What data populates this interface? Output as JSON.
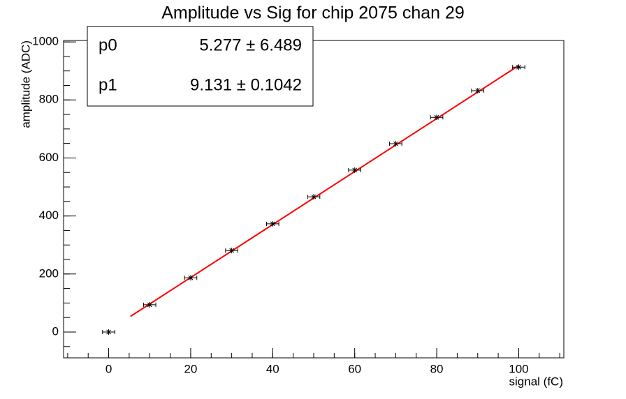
{
  "chart_data": {
    "type": "scatter",
    "title": "Amplitude vs Sig for chip 2075 chan 29",
    "x_label": "signal (fC)",
    "y_label": "amplitude (ADC)",
    "xlim": [
      -11,
      111
    ],
    "ylim": [
      -89,
      1005
    ],
    "xticks": [
      0,
      20,
      40,
      60,
      80,
      100
    ],
    "yticks": [
      0,
      200,
      400,
      600,
      800,
      1000
    ],
    "x_error": 1.5,
    "series": [
      {
        "name": "data",
        "color": "#000000",
        "x": [
          0,
          10,
          20,
          30,
          40,
          50,
          60,
          70,
          80,
          90,
          100
        ],
        "values": [
          0,
          94,
          187,
          281,
          373,
          466,
          558,
          649,
          740,
          832,
          913
        ]
      }
    ],
    "fit": {
      "color": "#ff0000",
      "x": [
        5.3,
        100
      ],
      "values": [
        53.7,
        918.4
      ]
    },
    "stats": [
      {
        "name": "p0",
        "value": "5.277 ± 6.489"
      },
      {
        "name": "p1",
        "value": "9.131 ± 0.1042"
      }
    ]
  }
}
